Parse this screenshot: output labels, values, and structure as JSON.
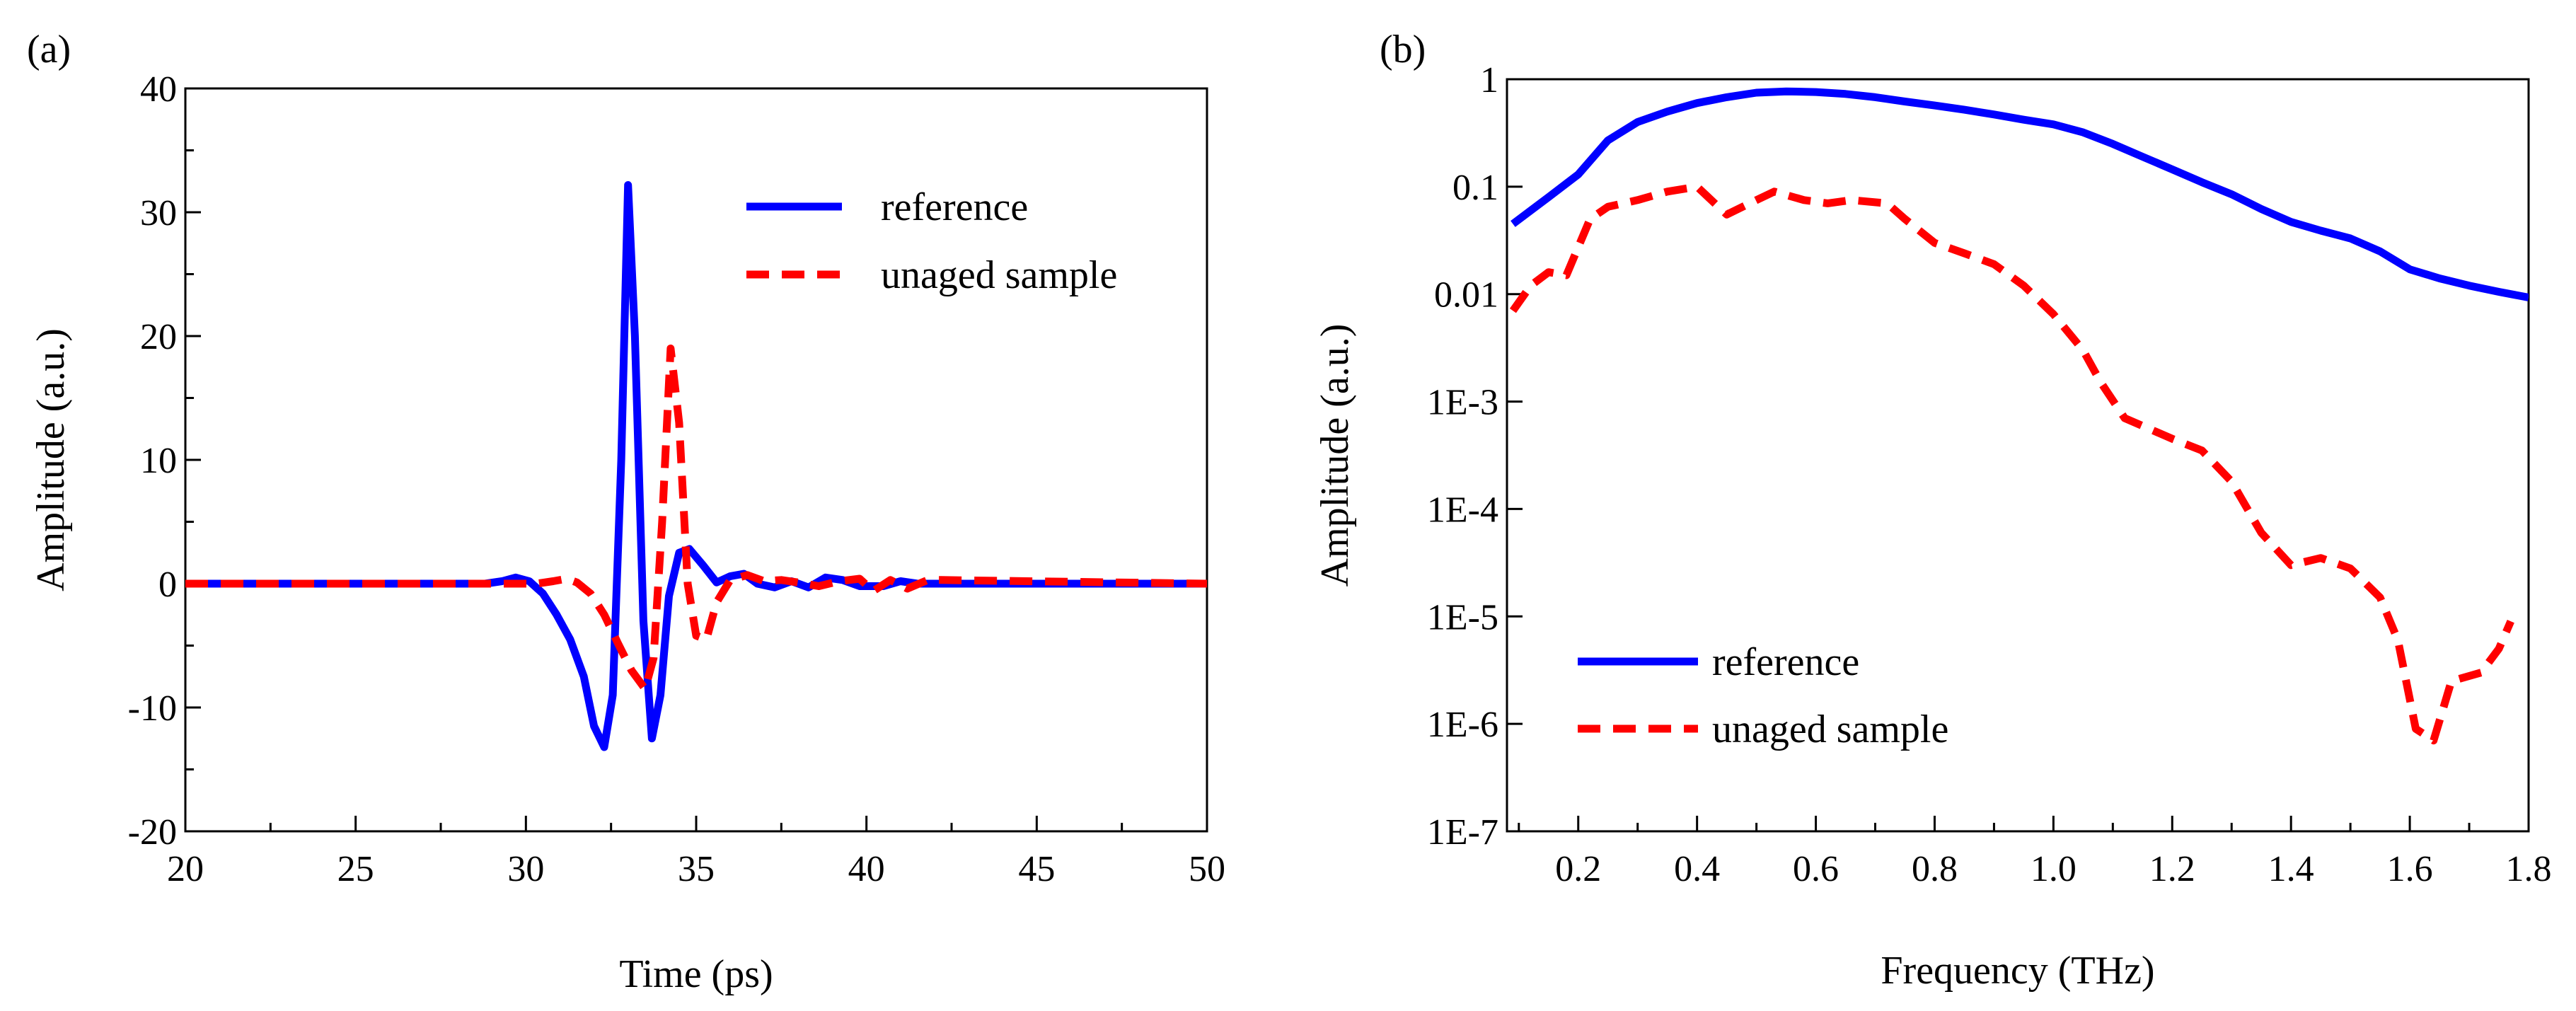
{
  "chart_data": [
    {
      "panel_label": "(a)",
      "type": "line",
      "xlabel": "Time (ps)",
      "ylabel": "Amplitude (a.u.)",
      "xlim": [
        20,
        50
      ],
      "ylim": [
        -20,
        40
      ],
      "x_ticks": [
        20,
        25,
        30,
        35,
        40,
        45,
        50
      ],
      "y_ticks": [
        -20,
        -10,
        0,
        10,
        20,
        30,
        40
      ],
      "x_tick_labels": [
        "20",
        "25",
        "30",
        "35",
        "40",
        "45",
        "50"
      ],
      "y_tick_labels": [
        "-20",
        "-10",
        "0",
        "10",
        "20",
        "30",
        "40"
      ],
      "legend": {
        "placement": "top-right"
      },
      "series": [
        {
          "name": "reference",
          "color": "#0000ff",
          "style": "solid",
          "points": [
            [
              20,
              0
            ],
            [
              28.8,
              0
            ],
            [
              29.3,
              0.2
            ],
            [
              29.7,
              0.5
            ],
            [
              30.1,
              0.2
            ],
            [
              30.5,
              -0.8
            ],
            [
              30.9,
              -2.5
            ],
            [
              31.3,
              -4.5
            ],
            [
              31.7,
              -7.5
            ],
            [
              32.0,
              -11.5
            ],
            [
              32.3,
              -13.2
            ],
            [
              32.55,
              -9
            ],
            [
              32.8,
              10
            ],
            [
              33.0,
              32.2
            ],
            [
              33.2,
              20
            ],
            [
              33.45,
              -3
            ],
            [
              33.7,
              -12.5
            ],
            [
              33.95,
              -9
            ],
            [
              34.2,
              -1
            ],
            [
              34.5,
              2.5
            ],
            [
              34.8,
              2.8
            ],
            [
              35.2,
              1.5
            ],
            [
              35.6,
              0.1
            ],
            [
              36.0,
              0.6
            ],
            [
              36.4,
              0.8
            ],
            [
              36.8,
              0
            ],
            [
              37.3,
              -0.3
            ],
            [
              37.8,
              0.2
            ],
            [
              38.3,
              -0.3
            ],
            [
              38.8,
              0.5
            ],
            [
              39.3,
              0.3
            ],
            [
              39.8,
              -0.2
            ],
            [
              40.5,
              -0.2
            ],
            [
              41.0,
              0.2
            ],
            [
              41.5,
              0
            ],
            [
              50,
              0
            ]
          ]
        },
        {
          "name": "unaged sample",
          "color": "#ff0000",
          "style": "dashed",
          "points": [
            [
              20,
              0
            ],
            [
              30.3,
              0
            ],
            [
              30.8,
              0.2
            ],
            [
              31.2,
              0.4
            ],
            [
              31.5,
              0.1
            ],
            [
              31.9,
              -0.8
            ],
            [
              32.3,
              -2.5
            ],
            [
              32.7,
              -4.8
            ],
            [
              33.1,
              -7
            ],
            [
              33.5,
              -8.5
            ],
            [
              33.75,
              -6
            ],
            [
              34.0,
              5
            ],
            [
              34.25,
              19
            ],
            [
              34.5,
              13
            ],
            [
              34.75,
              0
            ],
            [
              35.0,
              -4.2
            ],
            [
              35.3,
              -4.5
            ],
            [
              35.6,
              -1.5
            ],
            [
              36.0,
              0.3
            ],
            [
              36.5,
              0.7
            ],
            [
              37.0,
              0.2
            ],
            [
              37.5,
              0.3
            ],
            [
              38.0,
              0.1
            ],
            [
              38.6,
              -0.2
            ],
            [
              39.2,
              0.2
            ],
            [
              39.8,
              0.4
            ],
            [
              40.2,
              -0.6
            ],
            [
              40.7,
              0.3
            ],
            [
              41.2,
              -0.4
            ],
            [
              41.8,
              0.3
            ],
            [
              42.2,
              0.3
            ],
            [
              50,
              0
            ]
          ]
        }
      ]
    },
    {
      "panel_label": "(b)",
      "type": "line",
      "xlabel": "Frequency (THz)",
      "ylabel": "Amplitude (a.u.)",
      "y_scale": "log",
      "xlim": [
        0.08,
        1.8
      ],
      "ylim": [
        1e-07,
        1
      ],
      "x_ticks": [
        0.2,
        0.4,
        0.6,
        0.8,
        1.0,
        1.2,
        1.4,
        1.6,
        1.8
      ],
      "y_ticks": [
        1e-07,
        1e-06,
        1e-05,
        0.0001,
        0.001,
        0.01,
        0.1,
        1
      ],
      "x_tick_labels": [
        "0.2",
        "0.4",
        "0.6",
        "0.8",
        "1.0",
        "1.2",
        "1.4",
        "1.6",
        "1.8"
      ],
      "y_tick_labels": [
        "1E-7",
        "1E-6",
        "1E-5",
        "1E-4",
        "1E-3",
        "0.01",
        "0.1",
        "1"
      ],
      "legend": {
        "placement": "bottom-left"
      },
      "series": [
        {
          "name": "reference",
          "color": "#0000ff",
          "style": "solid",
          "points": [
            [
              0.09,
              0.045
            ],
            [
              0.15,
              0.08
            ],
            [
              0.2,
              0.13
            ],
            [
              0.25,
              0.27
            ],
            [
              0.3,
              0.4
            ],
            [
              0.35,
              0.5
            ],
            [
              0.4,
              0.6
            ],
            [
              0.45,
              0.68
            ],
            [
              0.5,
              0.75
            ],
            [
              0.55,
              0.77
            ],
            [
              0.6,
              0.76
            ],
            [
              0.65,
              0.73
            ],
            [
              0.7,
              0.68
            ],
            [
              0.75,
              0.62
            ],
            [
              0.8,
              0.57
            ],
            [
              0.85,
              0.52
            ],
            [
              0.9,
              0.47
            ],
            [
              0.95,
              0.42
            ],
            [
              1.0,
              0.38
            ],
            [
              1.05,
              0.32
            ],
            [
              1.1,
              0.25
            ],
            [
              1.15,
              0.19
            ],
            [
              1.2,
              0.145
            ],
            [
              1.25,
              0.11
            ],
            [
              1.3,
              0.085
            ],
            [
              1.35,
              0.062
            ],
            [
              1.4,
              0.047
            ],
            [
              1.45,
              0.039
            ],
            [
              1.5,
              0.033
            ],
            [
              1.55,
              0.025
            ],
            [
              1.6,
              0.017
            ],
            [
              1.65,
              0.014
            ],
            [
              1.7,
              0.012
            ],
            [
              1.75,
              0.0105
            ],
            [
              1.8,
              0.0093
            ]
          ]
        },
        {
          "name": "unaged sample",
          "color": "#ff0000",
          "style": "dashed",
          "points": [
            [
              0.09,
              0.007
            ],
            [
              0.12,
              0.012
            ],
            [
              0.15,
              0.016
            ],
            [
              0.18,
              0.015
            ],
            [
              0.22,
              0.05
            ],
            [
              0.25,
              0.065
            ],
            [
              0.3,
              0.075
            ],
            [
              0.35,
              0.09
            ],
            [
              0.4,
              0.1
            ],
            [
              0.45,
              0.055
            ],
            [
              0.5,
              0.075
            ],
            [
              0.53,
              0.09
            ],
            [
              0.58,
              0.075
            ],
            [
              0.62,
              0.07
            ],
            [
              0.66,
              0.075
            ],
            [
              0.72,
              0.07
            ],
            [
              0.75,
              0.05
            ],
            [
              0.8,
              0.03
            ],
            [
              0.85,
              0.024
            ],
            [
              0.9,
              0.019
            ],
            [
              0.95,
              0.012
            ],
            [
              1.0,
              0.0065
            ],
            [
              1.05,
              0.003
            ],
            [
              1.08,
              0.0015
            ],
            [
              1.12,
              0.0007
            ],
            [
              1.2,
              0.00045
            ],
            [
              1.25,
              0.00035
            ],
            [
              1.3,
              0.00018
            ],
            [
              1.35,
              6e-05
            ],
            [
              1.4,
              3e-05
            ],
            [
              1.45,
              3.5e-05
            ],
            [
              1.5,
              2.8e-05
            ],
            [
              1.55,
              1.5e-05
            ],
            [
              1.58,
              6e-06
            ],
            [
              1.61,
              9e-07
            ],
            [
              1.64,
              7e-07
            ],
            [
              1.67,
              2.5e-06
            ],
            [
              1.72,
              3e-06
            ],
            [
              1.75,
              5e-06
            ],
            [
              1.77,
              9e-06
            ]
          ]
        }
      ]
    }
  ]
}
